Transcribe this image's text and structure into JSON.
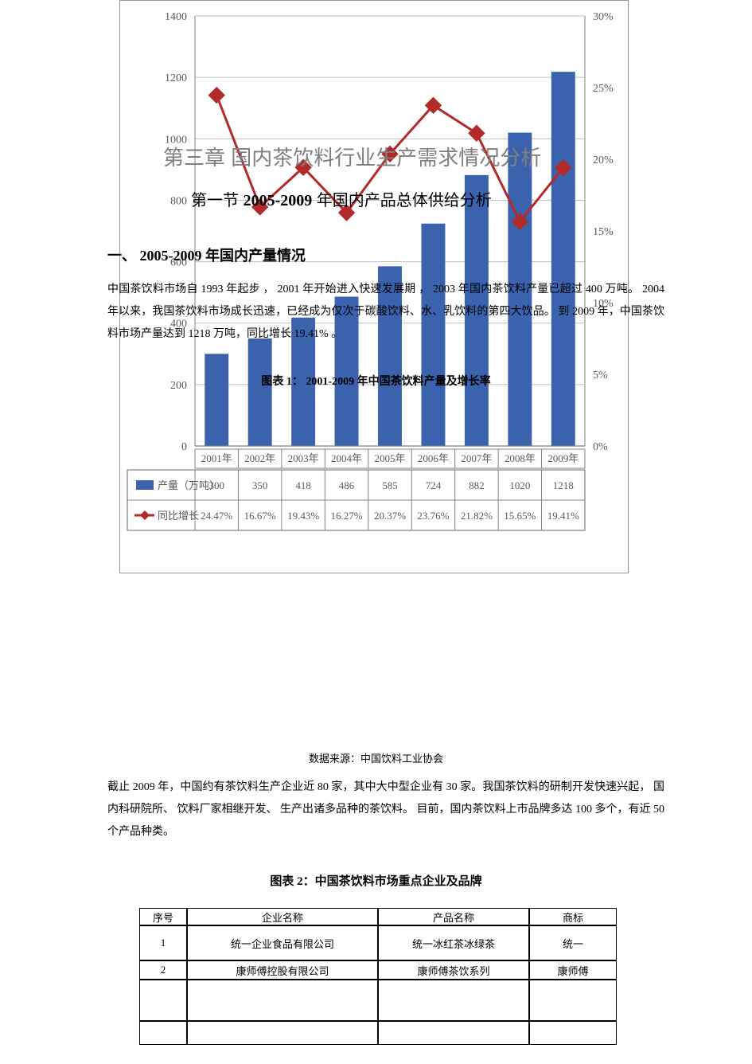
{
  "document": {
    "chapter_title": "第三章  国内茶饮料行业生产需求情况分析",
    "section_title_pre": "第一节    ",
    "section_title_num": "2005-2009",
    "section_title_post": "   年国内产品总体供给分析",
    "subhead1_pre": "一、   ",
    "subhead1_num": "2005-2009",
    "subhead1_post": "  年国内产量情况",
    "para1": "中国茶饮料市场自     1993 年起步 ，  2001 年开始进入快速发展期 ，      2003  年国内茶饮料产量已超过  400 万吨。  2004 年以来，我国茶饮料市场成长迅速，已经成为仅次于碳酸饮料、水、乳饮料的第四大饮品。 到 2009 年，中国茶饮料市场产量达到      1218 万吨，同比增长 19.41% 。",
    "chart_caption_pre": "图表 ",
    "chart_caption_num": "1：   2001-2009",
    "chart_caption_post": " 年中国茶饮料产量及增长率",
    "data_source": "数据来源：中国饮料工业协会",
    "para2": "截止 2009 年，中国约有茶饮料生产企业近       80 家，其中大中型企业有     30 家。我国茶饮料的研制开发快速兴起，   国内科研院所、 饮料厂家相继开发、   生产出诸多品种的茶饮料。   目前，国内茶饮料上市品牌多达     100 多个，有近   50 个产品种类。",
    "table_caption_pre": "图表  ",
    "table_caption_num": "2：",
    "table_caption_post": "中国茶饮料市场重点企业及品牌"
  },
  "chart": {
    "type": "bar+line",
    "background_color": "#ffffff",
    "border_color": "#969696",
    "plot_border_color": "#808080",
    "grid_color": "#bfbfbf",
    "text_color": "#5a5a5a",
    "font_family": "SimSun",
    "label_fontsize": 14,
    "categories": [
      "2001年",
      "2002年",
      "2003年",
      "2004年",
      "2005年",
      "2006年",
      "2007年",
      "2008年",
      "2009年"
    ],
    "bars": {
      "label": "产量（万吨）",
      "values": [
        300,
        350,
        418,
        486,
        585,
        724,
        882,
        1020,
        1218
      ],
      "color": "#3a62ad",
      "bar_width": 0.55
    },
    "line": {
      "label": "同比增长",
      "values_pct": [
        24.47,
        16.67,
        19.43,
        16.27,
        20.37,
        23.76,
        21.82,
        15.65,
        19.41
      ],
      "color": "#b22a2a",
      "marker": "diamond",
      "marker_size": 10,
      "line_width": 3
    },
    "y_left": {
      "min": 0,
      "max": 1400,
      "step": 200,
      "label_suffix": ""
    },
    "y_right": {
      "min": 0,
      "max": 30,
      "step": 5,
      "label_suffix": "%"
    },
    "legend_swatch_bar": "#3a62ad",
    "legend_swatch_line": "#b22a2a"
  },
  "brand_table": {
    "columns": [
      "序号",
      "企业名称",
      "产品名称",
      "商标"
    ],
    "rows": [
      [
        "1",
        "统一企业食品有限公司",
        "统一冰红茶冰绿茶",
        "统一"
      ],
      [
        "2",
        "康师傅控股有限公司",
        "康师傅茶饮系列",
        "康师傅"
      ]
    ]
  }
}
